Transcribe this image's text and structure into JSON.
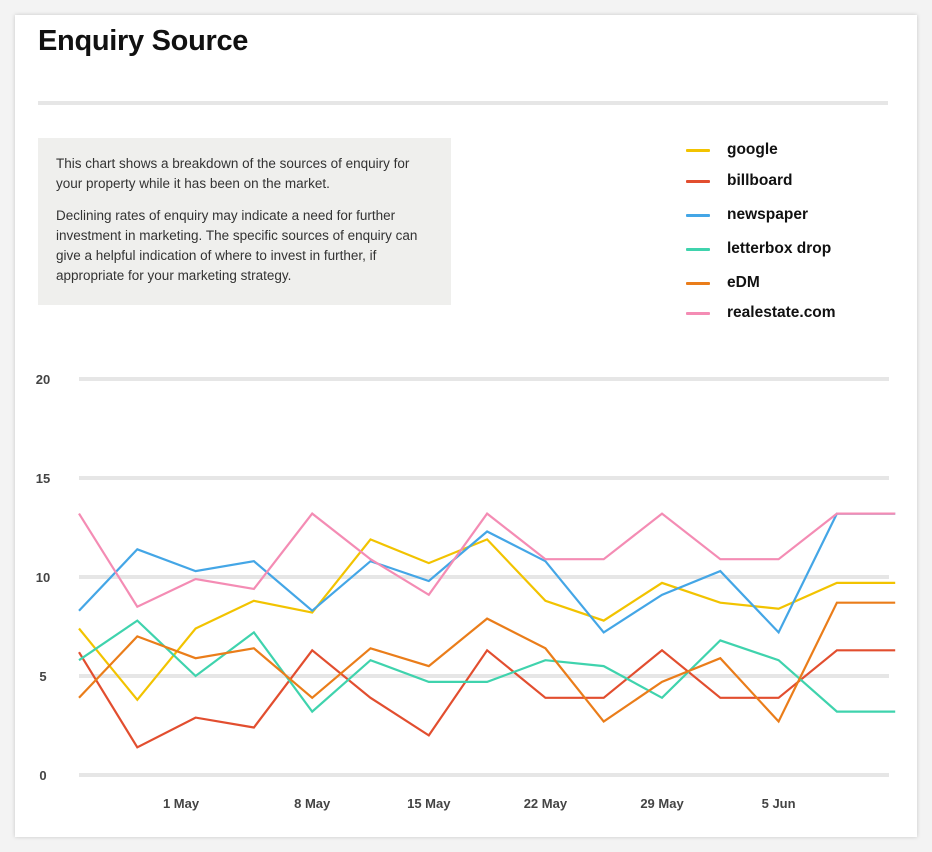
{
  "title": "Enquiry Source",
  "description": [
    "This chart shows a breakdown of the sources of enquiry for your property while it has been on the market.",
    "Declining rates of enquiry may indicate a need for further investment in marketing. The specific sources of enquiry can give a helpful indication of where to invest in further, if appropriate for your marketing strategy."
  ],
  "chart_data": {
    "type": "line",
    "title": "",
    "xlabel": "",
    "ylabel": "",
    "ylim": [
      0,
      20
    ],
    "yticks": [
      0,
      5,
      10,
      15,
      20
    ],
    "grid": true,
    "legend_position": "top-right",
    "x_tick_labels": [
      "1 May",
      "8 May",
      "15 May",
      "22 May",
      "29 May",
      "5 Jun"
    ],
    "series": [
      {
        "name": "google",
        "color": "#f2c300",
        "values": [
          7.4,
          3.8,
          7.4,
          8.8,
          8.2,
          11.9,
          10.7,
          11.9,
          8.8,
          7.8,
          9.7,
          8.7,
          8.4,
          9.7,
          9.7
        ]
      },
      {
        "name": "billboard",
        "color": "#e24e2f",
        "values": [
          6.2,
          1.4,
          2.9,
          2.4,
          6.3,
          3.9,
          2.0,
          6.3,
          3.9,
          3.9,
          6.3,
          3.9,
          3.9,
          6.3,
          6.3
        ]
      },
      {
        "name": "newspaper",
        "color": "#44a6e6",
        "values": [
          8.3,
          11.4,
          10.3,
          10.8,
          8.3,
          10.8,
          9.8,
          12.3,
          10.8,
          7.2,
          9.1,
          10.3,
          7.2,
          13.2,
          13.2
        ]
      },
      {
        "name": "letterbox drop",
        "color": "#3fd3ad",
        "values": [
          5.8,
          7.8,
          5.0,
          7.2,
          3.2,
          5.8,
          4.7,
          4.7,
          5.8,
          5.5,
          3.9,
          6.8,
          5.8,
          3.2,
          3.2
        ]
      },
      {
        "name": "eDM",
        "color": "#ea7d1a",
        "values": [
          3.9,
          7.0,
          5.9,
          6.4,
          3.9,
          6.4,
          5.5,
          7.9,
          6.4,
          2.7,
          4.7,
          5.9,
          2.7,
          8.7,
          8.7
        ]
      },
      {
        "name": "realestate.com",
        "color": "#f48cb4",
        "values": [
          13.2,
          8.5,
          9.9,
          9.4,
          13.2,
          10.9,
          9.1,
          13.2,
          10.9,
          10.9,
          13.2,
          10.9,
          10.9,
          13.2,
          13.2
        ]
      }
    ]
  }
}
